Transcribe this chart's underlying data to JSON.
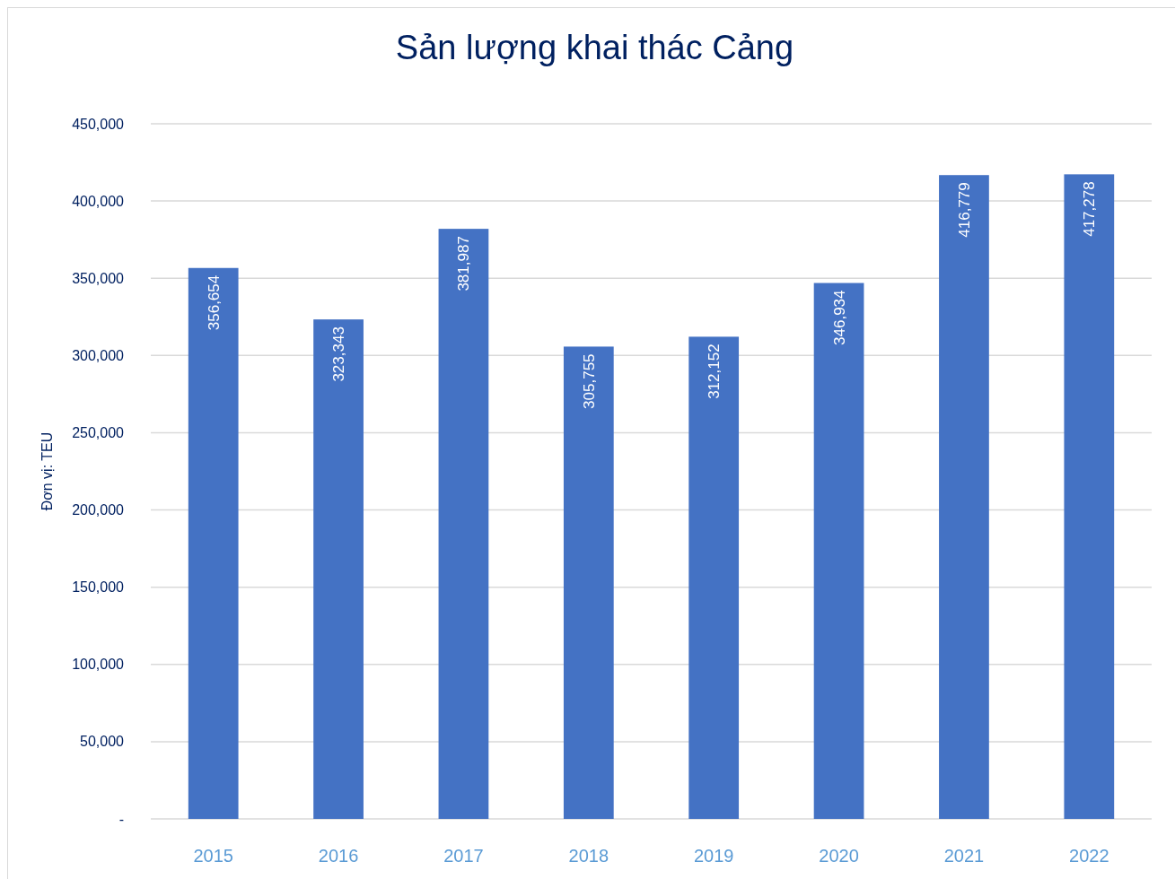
{
  "chart_data": {
    "type": "bar",
    "title": "Sản lượng khai thác Cảng",
    "ylabel": "Đơn vị: TEU",
    "categories": [
      "2015",
      "2016",
      "2017",
      "2018",
      "2019",
      "2020",
      "2021",
      "2022"
    ],
    "values": [
      356654,
      323343,
      381987,
      305755,
      312152,
      346934,
      416779,
      417278
    ],
    "value_labels": [
      "356,654",
      "323,343",
      "381,987",
      "305,755",
      "312,152",
      "346,934",
      "416,779",
      "417,278"
    ],
    "color": "#4472c4",
    "grid": "y",
    "ylim": [
      0,
      450000
    ],
    "yticks": [
      {
        "value": 0,
        "label": "-"
      },
      {
        "value": 50000,
        "label": "50,000"
      },
      {
        "value": 100000,
        "label": "100,000"
      },
      {
        "value": 150000,
        "label": "150,000"
      },
      {
        "value": 200000,
        "label": "200,000"
      },
      {
        "value": 250000,
        "label": "250,000"
      },
      {
        "value": 300000,
        "label": "300,000"
      },
      {
        "value": 350000,
        "label": "350,000"
      },
      {
        "value": 400000,
        "label": "400,000"
      },
      {
        "value": 450000,
        "label": "450,000"
      }
    ]
  }
}
